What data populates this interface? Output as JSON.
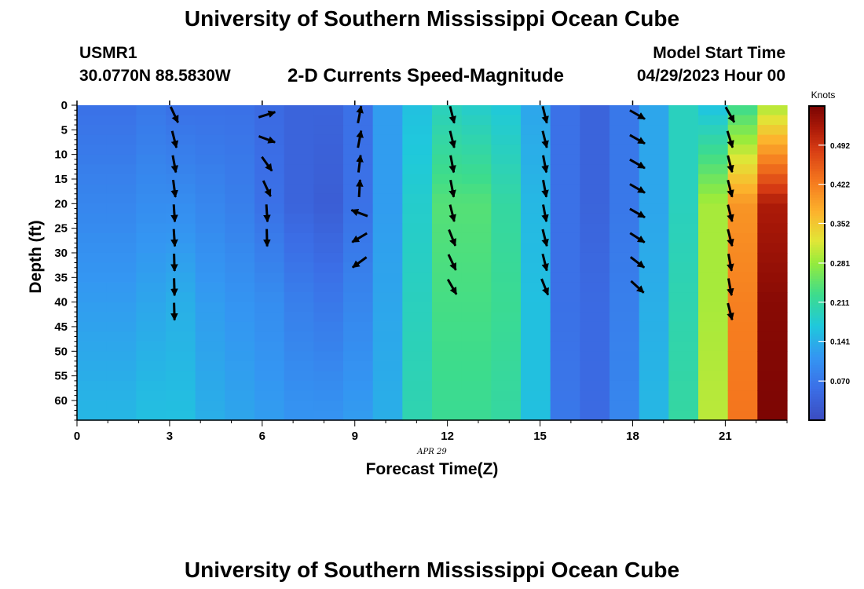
{
  "header": {
    "title": "University of Southern Mississippi Ocean Cube",
    "station_id": "USMR1",
    "coordinates": "30.0770N  88.5830W",
    "chart_title": "2-D Currents Speed-Magnitude",
    "model_label": "Model Start Time",
    "model_start": "04/29/2023 Hour 00"
  },
  "footer": {
    "title": "University of Southern Mississippi Ocean Cube"
  },
  "chart_data": {
    "type": "heatmap",
    "title": "2-D Currents Speed-Magnitude",
    "xlabel": "Forecast Time(Z)",
    "ylabel": "Depth (ft)",
    "date_label": "APR 29",
    "xlim": [
      0,
      23
    ],
    "ylim": [
      0,
      64
    ],
    "y_inverted": true,
    "xticks": [
      0,
      3,
      6,
      9,
      12,
      15,
      18,
      21
    ],
    "yticks": [
      0,
      5,
      10,
      15,
      20,
      25,
      30,
      35,
      40,
      45,
      50,
      55,
      60
    ],
    "colorbar": {
      "unit": "Knots",
      "range": [
        0,
        0.562
      ],
      "ticks": [
        "0.070",
        "0.141",
        "0.211",
        "0.281",
        "0.352",
        "0.422",
        "0.492"
      ]
    },
    "colors": {
      "low": "#3b4cc0",
      "mid": "#9ae03a",
      "high": "#7a0403"
    },
    "hours": [
      0,
      1,
      2,
      3,
      4,
      5,
      6,
      7,
      8,
      9,
      10,
      11,
      12,
      13,
      14,
      15,
      16,
      17,
      18,
      19,
      20,
      21,
      22,
      23
    ],
    "speed_profiles": [
      {
        "hour": 0,
        "depths": [
          0,
          20,
          40,
          64
        ],
        "speed": [
          0.06,
          0.09,
          0.12,
          0.15
        ]
      },
      {
        "hour": 1,
        "depths": [
          0,
          20,
          40,
          64
        ],
        "speed": [
          0.06,
          0.09,
          0.12,
          0.15
        ]
      },
      {
        "hour": 2,
        "depths": [
          0,
          20,
          40,
          64
        ],
        "speed": [
          0.07,
          0.1,
          0.13,
          0.16
        ]
      },
      {
        "hour": 3,
        "depths": [
          0,
          20,
          40,
          64
        ],
        "speed": [
          0.06,
          0.1,
          0.14,
          0.16
        ]
      },
      {
        "hour": 4,
        "depths": [
          0,
          20,
          40,
          64
        ],
        "speed": [
          0.06,
          0.09,
          0.12,
          0.14
        ]
      },
      {
        "hour": 5,
        "depths": [
          0,
          20,
          40,
          64
        ],
        "speed": [
          0.06,
          0.08,
          0.11,
          0.13
        ]
      },
      {
        "hour": 6,
        "depths": [
          0,
          20,
          40,
          64
        ],
        "speed": [
          0.05,
          0.06,
          0.1,
          0.12
        ]
      },
      {
        "hour": 7,
        "depths": [
          0,
          20,
          40,
          64
        ],
        "speed": [
          0.04,
          0.04,
          0.08,
          0.11
        ]
      },
      {
        "hour": 8,
        "depths": [
          0,
          20,
          40,
          64
        ],
        "speed": [
          0.04,
          0.03,
          0.07,
          0.11
        ]
      },
      {
        "hour": 9,
        "depths": [
          0,
          20,
          40,
          64
        ],
        "speed": [
          0.06,
          0.06,
          0.09,
          0.12
        ]
      },
      {
        "hour": 10,
        "depths": [
          0,
          20,
          40,
          64
        ],
        "speed": [
          0.12,
          0.12,
          0.13,
          0.14
        ]
      },
      {
        "hour": 11,
        "depths": [
          0,
          20,
          40,
          64
        ],
        "speed": [
          0.16,
          0.18,
          0.19,
          0.2
        ]
      },
      {
        "hour": 12,
        "depths": [
          0,
          20,
          40,
          64
        ],
        "speed": [
          0.19,
          0.24,
          0.23,
          0.22
        ]
      },
      {
        "hour": 13,
        "depths": [
          0,
          20,
          40,
          64
        ],
        "speed": [
          0.18,
          0.24,
          0.23,
          0.22
        ]
      },
      {
        "hour": 14,
        "depths": [
          0,
          20,
          40,
          64
        ],
        "speed": [
          0.17,
          0.21,
          0.22,
          0.21
        ]
      },
      {
        "hour": 15,
        "depths": [
          0,
          20,
          40,
          64
        ],
        "speed": [
          0.13,
          0.15,
          0.16,
          0.16
        ]
      },
      {
        "hour": 16,
        "depths": [
          0,
          20,
          40,
          64
        ],
        "speed": [
          0.06,
          0.06,
          0.06,
          0.07
        ]
      },
      {
        "hour": 17,
        "depths": [
          0,
          20,
          40,
          64
        ],
        "speed": [
          0.04,
          0.04,
          0.05,
          0.05
        ]
      },
      {
        "hour": 18,
        "depths": [
          0,
          20,
          40,
          64
        ],
        "speed": [
          0.07,
          0.07,
          0.08,
          0.09
        ]
      },
      {
        "hour": 19,
        "depths": [
          0,
          20,
          40,
          64
        ],
        "speed": [
          0.13,
          0.13,
          0.14,
          0.15
        ]
      },
      {
        "hour": 20,
        "depths": [
          0,
          20,
          40,
          64
        ],
        "speed": [
          0.19,
          0.19,
          0.2,
          0.21
        ]
      },
      {
        "hour": 21,
        "depths": [
          0,
          20,
          40,
          64
        ],
        "speed": [
          0.16,
          0.29,
          0.29,
          0.3
        ]
      },
      {
        "hour": 22,
        "depths": [
          0,
          20,
          40,
          64
        ],
        "speed": [
          0.22,
          0.4,
          0.42,
          0.43
        ]
      },
      {
        "hour": 23,
        "depths": [
          0,
          20,
          40,
          64
        ],
        "speed": [
          0.29,
          0.52,
          0.55,
          0.56
        ]
      }
    ],
    "arrow_depths": [
      0,
      5,
      10,
      15,
      20,
      25,
      30,
      35,
      40,
      45
    ],
    "arrows": [
      {
        "hour": 3,
        "vectors": [
          [
            0.35,
            -0.75
          ],
          [
            0.2,
            -0.8
          ],
          [
            0.15,
            -0.8
          ],
          [
            0.1,
            -0.8
          ],
          [
            0.05,
            -0.8
          ],
          [
            0.05,
            -0.8
          ],
          [
            0.02,
            -0.8
          ],
          [
            0.02,
            -0.8
          ],
          [
            0.02,
            -0.8
          ]
        ]
      },
      {
        "hour": 6,
        "vectors": [
          [
            0.8,
            0.25
          ],
          [
            0.8,
            -0.3
          ],
          [
            0.5,
            -0.7
          ],
          [
            0.35,
            -0.75
          ],
          [
            0.05,
            -0.8
          ],
          [
            0.02,
            -0.8
          ]
        ]
      },
      {
        "hour": 9,
        "vectors": [
          [
            0.15,
            0.8
          ],
          [
            0.15,
            0.8
          ],
          [
            0.1,
            0.8
          ],
          [
            0.05,
            0.8
          ],
          [
            -0.8,
            0.3
          ],
          [
            -0.75,
            -0.45
          ],
          [
            -0.75,
            -0.55
          ]
        ]
      },
      {
        "hour": 12,
        "vectors": [
          [
            0.2,
            -0.8
          ],
          [
            0.2,
            -0.8
          ],
          [
            0.15,
            -0.8
          ],
          [
            0.15,
            -0.8
          ],
          [
            0.2,
            -0.8
          ],
          [
            0.3,
            -0.75
          ],
          [
            0.35,
            -0.75
          ],
          [
            0.4,
            -0.7
          ]
        ]
      },
      {
        "hour": 15,
        "vectors": [
          [
            0.2,
            -0.8
          ],
          [
            0.2,
            -0.8
          ],
          [
            0.15,
            -0.8
          ],
          [
            0.15,
            -0.8
          ],
          [
            0.15,
            -0.8
          ],
          [
            0.2,
            -0.8
          ],
          [
            0.2,
            -0.8
          ],
          [
            0.3,
            -0.75
          ]
        ]
      },
      {
        "hour": 18,
        "vectors": [
          [
            0.7,
            -0.4
          ],
          [
            0.7,
            -0.4
          ],
          [
            0.7,
            -0.4
          ],
          [
            0.7,
            -0.4
          ],
          [
            0.7,
            -0.4
          ],
          [
            0.7,
            -0.45
          ],
          [
            0.65,
            -0.5
          ],
          [
            0.6,
            -0.55
          ]
        ]
      },
      {
        "hour": 21,
        "vectors": [
          [
            0.4,
            -0.7
          ],
          [
            0.25,
            -0.8
          ],
          [
            0.2,
            -0.8
          ],
          [
            0.2,
            -0.8
          ],
          [
            0.2,
            -0.8
          ],
          [
            0.2,
            -0.8
          ],
          [
            0.15,
            -0.8
          ],
          [
            0.15,
            -0.8
          ],
          [
            0.2,
            -0.8
          ]
        ]
      }
    ]
  }
}
